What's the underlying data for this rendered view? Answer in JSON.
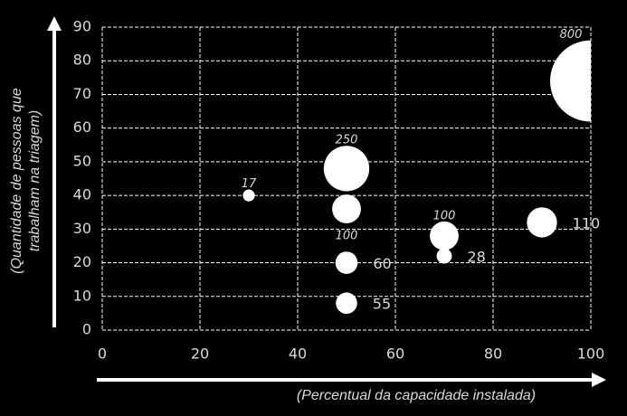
{
  "chart_data": {
    "type": "bubble",
    "x_label": "(Percentual da capacidade instalada)",
    "y_label": [
      "(Quantidade de pessoas que",
      "trabalham na triagem)"
    ],
    "x": [
      30,
      50,
      50,
      50,
      50,
      70,
      70,
      90,
      100
    ],
    "values": [
      40,
      48,
      36,
      20,
      8,
      28,
      22,
      32,
      74
    ],
    "sizes": [
      17,
      250,
      100,
      60,
      55,
      100,
      28,
      110,
      800
    ],
    "label_positions": [
      "above",
      "above",
      "below",
      "right",
      "right",
      "above",
      "right",
      "right",
      "above"
    ],
    "color": "#ffffff",
    "xlim": [
      0,
      100
    ],
    "xticks": [
      0,
      20,
      40,
      60,
      80,
      100
    ],
    "ylim": [
      0,
      90
    ],
    "yticks": [
      0,
      10,
      20,
      30,
      40,
      50,
      60,
      70,
      80,
      90
    ],
    "grid": true
  }
}
